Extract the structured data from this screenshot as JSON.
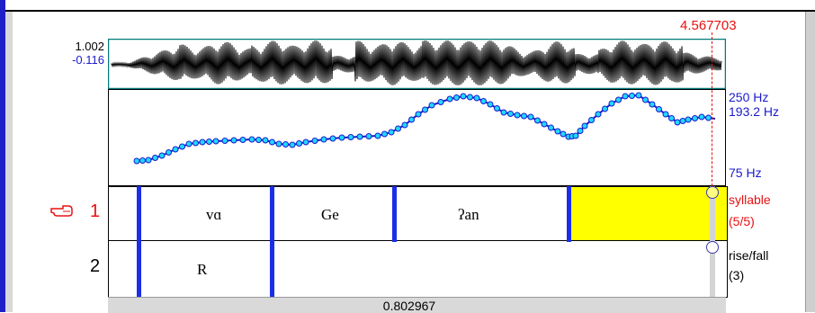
{
  "cursor": {
    "time": "4.567703",
    "color": "#e81010"
  },
  "waveform": {
    "max_label": "1.002",
    "min_label": "-0.116",
    "border_color": "#007a7a"
  },
  "pitch": {
    "top_label": "250 Hz",
    "current_label": "193.2 Hz",
    "bottom_label": "75 Hz",
    "line_color": "#1a1acc",
    "point_color": "#20d8ff"
  },
  "tiers": [
    {
      "number": "1",
      "name": "syllable",
      "count": "(5/5)",
      "active": true,
      "intervals": [
        "vɑ",
        "Ge",
        "ʔan"
      ],
      "selected_color": "#ffff00"
    },
    {
      "number": "2",
      "name": "rise/fall",
      "count": "(3)",
      "active": false,
      "intervals": [
        "R"
      ]
    }
  ],
  "selection_duration": "0.802967",
  "boundary_color": "#1a2ee8",
  "pointer_icon": "pointing-hand-icon"
}
